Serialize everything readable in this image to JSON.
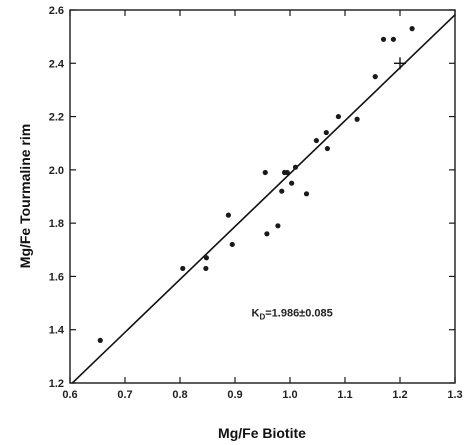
{
  "chart_data": {
    "type": "scatter",
    "title": "",
    "xlabel": "Mg/Fe Biotite",
    "ylabel": "Mg/Fe Tourmaline rim",
    "xlim": [
      0.6,
      1.3
    ],
    "ylim": [
      1.2,
      2.6
    ],
    "x_ticks": [
      "0.6",
      "0.7",
      "0.8",
      "0.9",
      "1.0",
      "1.1",
      "1.2",
      "1.3"
    ],
    "y_ticks": [
      "1.2",
      "1.4",
      "1.6",
      "1.8",
      "2.0",
      "2.2",
      "2.4",
      "2.6"
    ],
    "grid": false,
    "series": [
      {
        "points": [
          {
            "x": 0.655,
            "y": 1.36
          },
          {
            "x": 0.805,
            "y": 1.63
          },
          {
            "x": 0.847,
            "y": 1.63
          },
          {
            "x": 0.848,
            "y": 1.67
          },
          {
            "x": 0.888,
            "y": 1.83
          },
          {
            "x": 0.895,
            "y": 1.72
          },
          {
            "x": 0.955,
            "y": 1.99
          },
          {
            "x": 0.958,
            "y": 1.76
          },
          {
            "x": 0.978,
            "y": 1.79
          },
          {
            "x": 0.985,
            "y": 1.92
          },
          {
            "x": 0.99,
            "y": 1.99
          },
          {
            "x": 0.995,
            "y": 1.99
          },
          {
            "x": 1.003,
            "y": 1.95
          },
          {
            "x": 1.01,
            "y": 2.01
          },
          {
            "x": 1.03,
            "y": 1.91
          },
          {
            "x": 1.048,
            "y": 2.11
          },
          {
            "x": 1.066,
            "y": 2.14
          },
          {
            "x": 1.068,
            "y": 2.08
          },
          {
            "x": 1.088,
            "y": 2.2
          },
          {
            "x": 1.122,
            "y": 2.19
          },
          {
            "x": 1.155,
            "y": 2.35
          },
          {
            "x": 1.17,
            "y": 2.49
          },
          {
            "x": 1.188,
            "y": 2.49
          },
          {
            "x": 1.222,
            "y": 2.53
          }
        ]
      }
    ],
    "fit_line": {
      "slope": 1.986,
      "from_x": 0.6,
      "to_x": 1.3
    },
    "cross_marker": {
      "x": 1.2,
      "y": 2.4
    },
    "annotation": {
      "main": "K",
      "sub": "D",
      "rest": "=1.986±0.085",
      "x": 0.93,
      "y": 1.45
    }
  }
}
